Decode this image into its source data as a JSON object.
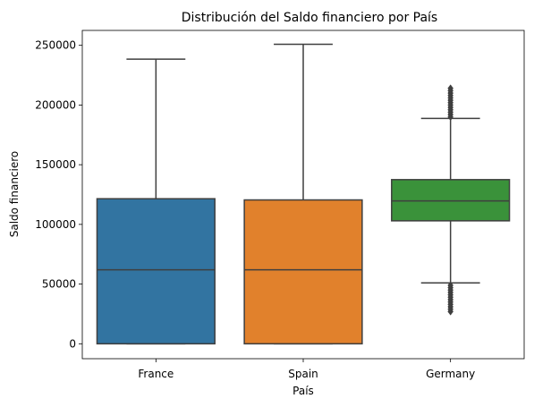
{
  "chart_data": {
    "type": "boxplot",
    "title": "Distribución del Saldo financiero por País",
    "xlabel": "País",
    "ylabel": "Saldo financiero",
    "categories": [
      "France",
      "Spain",
      "Germany"
    ],
    "ylim": [
      -12500,
      262500
    ],
    "yticks": [
      0,
      50000,
      100000,
      150000,
      200000,
      250000
    ],
    "ytick_labels": [
      "0",
      "50000",
      "100000",
      "150000",
      "200000",
      "250000"
    ],
    "grid": false,
    "boxes": [
      {
        "category": "France",
        "color": "#3274a1",
        "min": 0,
        "q1": 0,
        "median": 62000,
        "q3": 121500,
        "max": 238400,
        "outliers": []
      },
      {
        "category": "Spain",
        "color": "#e1812c",
        "min": 0,
        "q1": 0,
        "median": 62000,
        "q3": 120500,
        "max": 250900,
        "outliers": []
      },
      {
        "category": "Germany",
        "color": "#3a923a",
        "min": 51000,
        "q1": 103000,
        "median": 119700,
        "q3": 137500,
        "max": 188800,
        "outliers": [
          27000,
          29000,
          31000,
          33000,
          35000,
          37000,
          39000,
          41000,
          43000,
          45000,
          47000,
          49000,
          190000,
          192000,
          194000,
          196000,
          198000,
          200000,
          202000,
          204000,
          206000,
          208000,
          210000,
          212000,
          214000
        ]
      }
    ]
  }
}
